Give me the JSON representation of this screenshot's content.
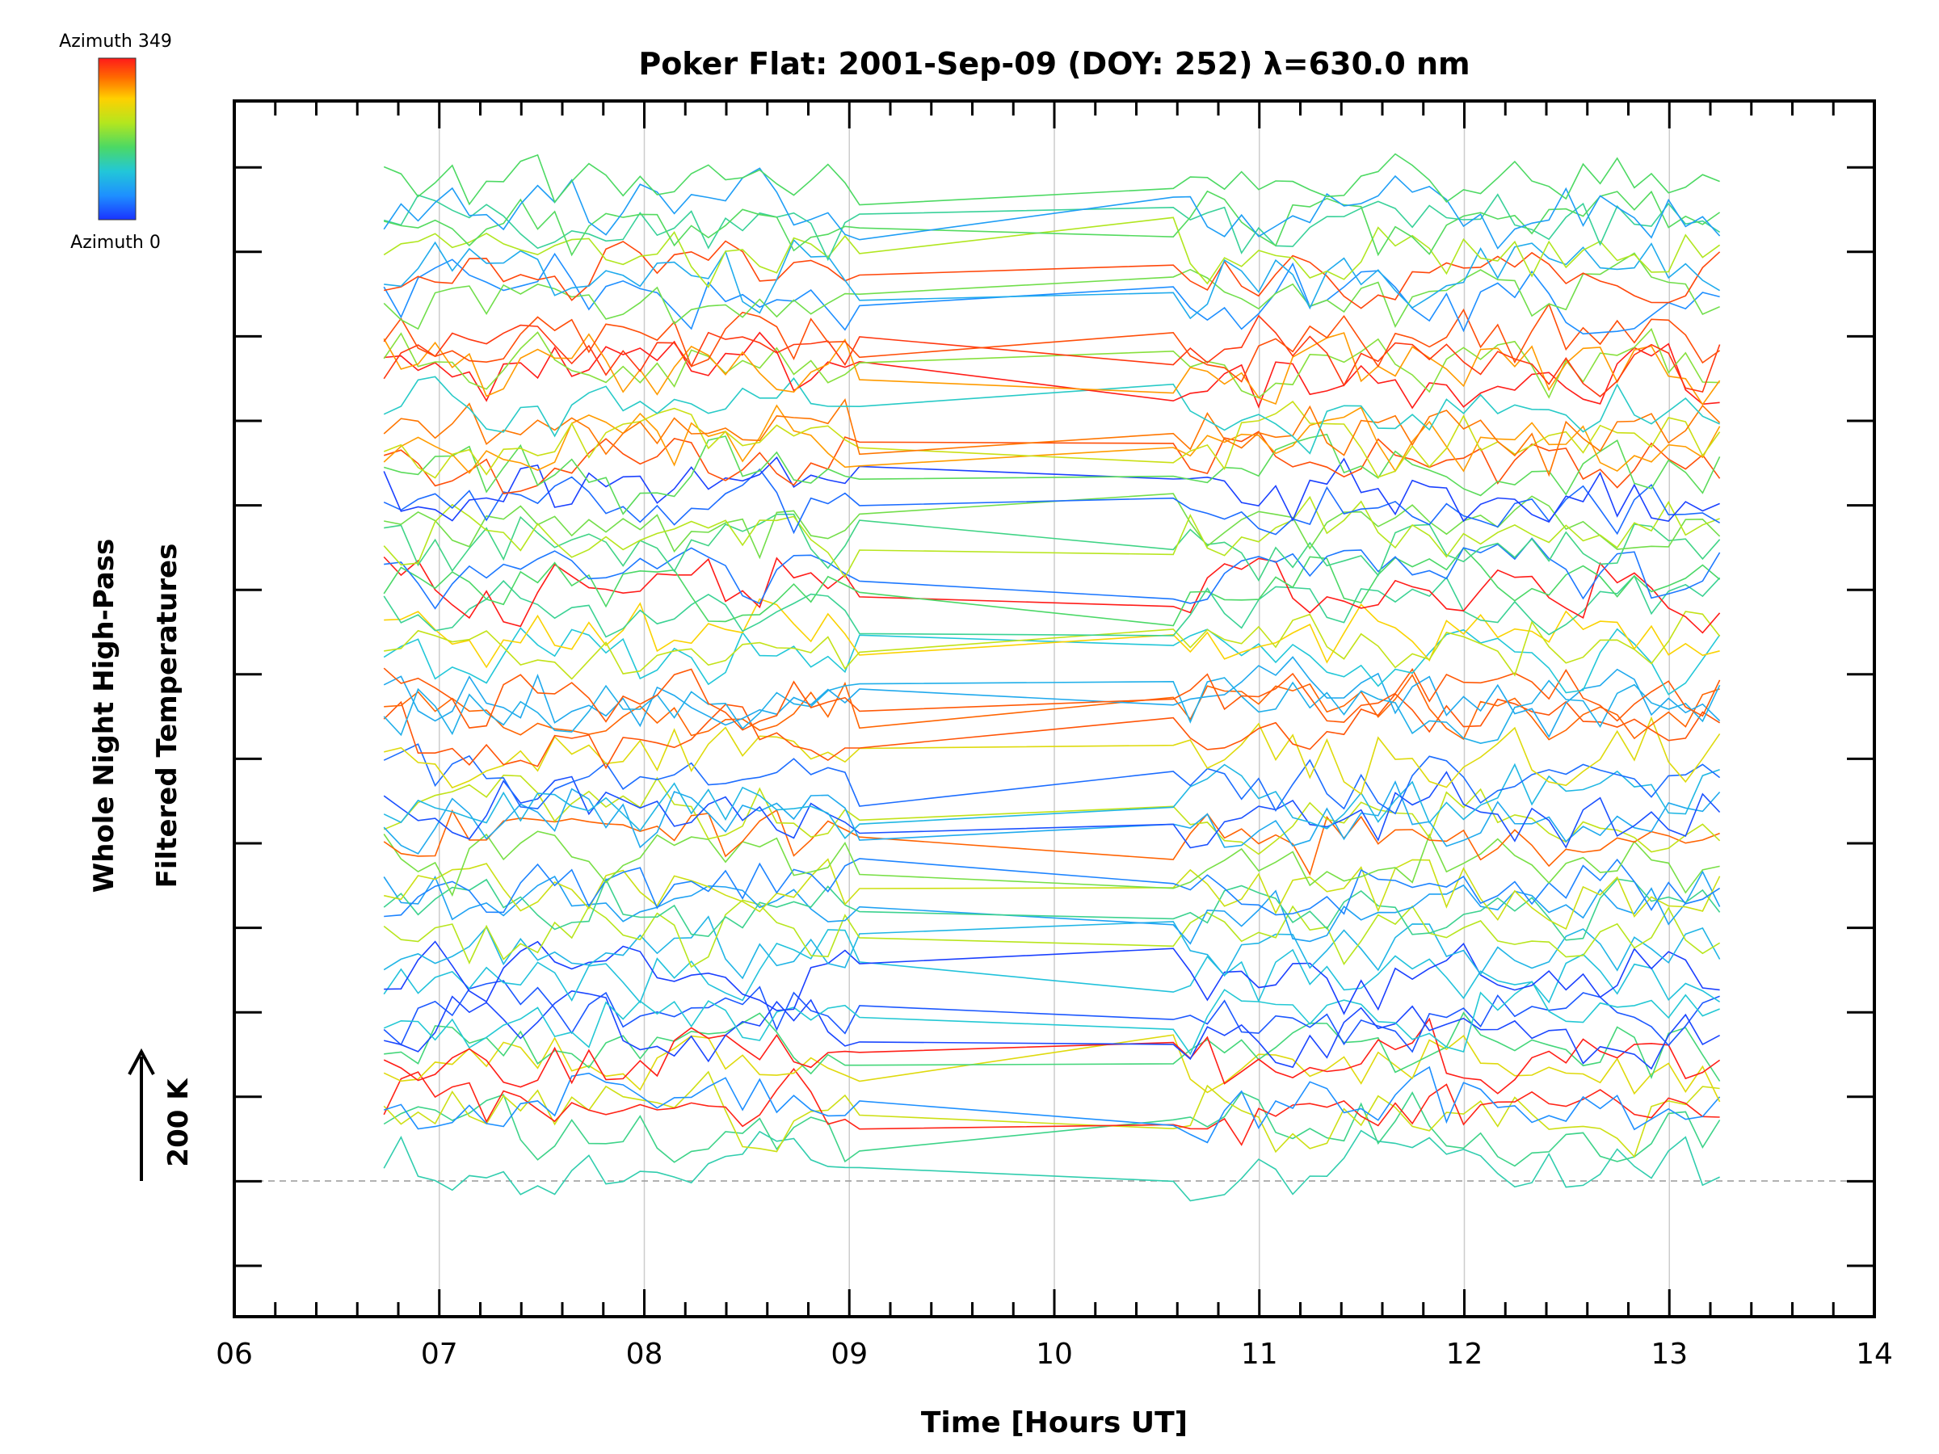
{
  "chart_data": {
    "type": "line",
    "title": "Poker Flat: 2001-Sep-09 (DOY: 252) λ=630.0 nm",
    "xlabel": "Time [Hours UT]",
    "ylabel_line1": "Whole Night High-Pass",
    "ylabel_line2": "Filtered Temperatures",
    "xlim": [
      6,
      14
    ],
    "x_ticks": [
      "06",
      "07",
      "08",
      "09",
      "10",
      "11",
      "12",
      "13",
      "14"
    ],
    "x_minor_step": 0.2,
    "vertical_gridlines": [
      7,
      8,
      9,
      10,
      11,
      12,
      13
    ],
    "grid": "vertical gridlines at each hour",
    "y_offset_ticks": 14,
    "scale_bar": {
      "label": "200 K",
      "arrow": "up"
    },
    "baseline_dashed": true,
    "colorbar": {
      "top_label": "Azimuth 349",
      "bottom_label": "Azimuth 0",
      "colormap": "rainbow (blue at 0 to red at 349)",
      "position": "top-left"
    },
    "colors": {
      "axis": "#000000",
      "grid": "#cccccc",
      "baseline": "#999999",
      "colormap_stops": [
        "#1a33ff",
        "#1e90ff",
        "#22c7d8",
        "#4cd964",
        "#b4e61e",
        "#ffd000",
        "#ff6a00",
        "#ff1a1a"
      ]
    },
    "series_summary": {
      "count": 64,
      "azimuth_range_deg": [
        0,
        349
      ],
      "time_range_hours": [
        6.73,
        13.27
      ],
      "data_gap_hours": [
        9.0,
        10.58
      ],
      "note": "Each trace is a temperature time series for one azimuth, offset vertically by azimuth"
    }
  }
}
